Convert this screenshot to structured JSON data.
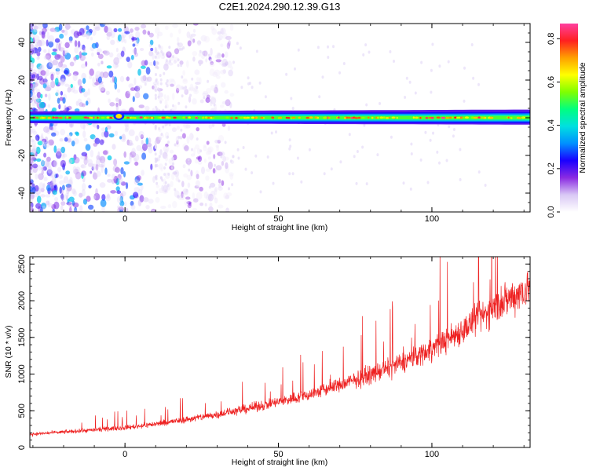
{
  "title": "C2E1.2024.290.12.39.G13",
  "chart_data": [
    {
      "type": "heatmap",
      "xlabel": "Height of straight line (km)",
      "ylabel": "Frequency (Hz)",
      "xlim": [
        -31,
        132
      ],
      "ylim": [
        -50,
        50
      ],
      "x_ticks": [
        0,
        50,
        100
      ],
      "x_tick_labels": [
        "0",
        "50",
        "100"
      ],
      "y_ticks": [
        -40,
        -20,
        0,
        20,
        40
      ],
      "y_tick_labels": [
        "-40",
        "-20",
        "0",
        "20",
        "40"
      ],
      "colorbar": {
        "label": "Normalized spectral amplitude",
        "range": [
          0,
          0.87
        ],
        "ticks": [
          0,
          0.2,
          0.4,
          0.6,
          0.8
        ],
        "tick_labels": [
          "0.0",
          "0.2",
          "0.4",
          "0.6",
          "0.8"
        ],
        "colormap": [
          "#ffffff",
          "#d9c8f5",
          "#8a2be2",
          "#1a00ff",
          "#0090ff",
          "#00e0e0",
          "#00ff80",
          "#80ff00",
          "#ffff00",
          "#ffa000",
          "#ff2020",
          "#ff40a0"
        ]
      },
      "features": {
        "carrier_line_frequency_hz": 0,
        "carrier_band_start_km": -31,
        "carrier_band_end_km": 132,
        "scatter_region_km": [
          -31,
          10
        ],
        "grid": false
      }
    },
    {
      "type": "line",
      "xlabel": "Height of straight line (km)",
      "ylabel": "SNR (10 * v/v)",
      "xlim": [
        -31,
        132
      ],
      "ylim": [
        0,
        2600
      ],
      "x_ticks": [
        0,
        50,
        100
      ],
      "x_tick_labels": [
        "0",
        "50",
        "100"
      ],
      "y_ticks": [
        0,
        500,
        1000,
        1500,
        2000,
        2500
      ],
      "y_tick_labels": [
        "0",
        "500",
        "1000",
        "1500",
        "2000",
        "2500"
      ],
      "color": "#ee2222",
      "grid": false,
      "series_trend": {
        "x": [
          -31,
          -20,
          -10,
          0,
          10,
          20,
          30,
          40,
          50,
          60,
          70,
          80,
          90,
          100,
          110,
          120,
          132
        ],
        "y": [
          180,
          210,
          240,
          270,
          320,
          380,
          450,
          530,
          620,
          720,
          850,
          990,
          1150,
          1350,
          1600,
          1900,
          2200
        ]
      },
      "noise_amplitude": 0.2
    }
  ]
}
